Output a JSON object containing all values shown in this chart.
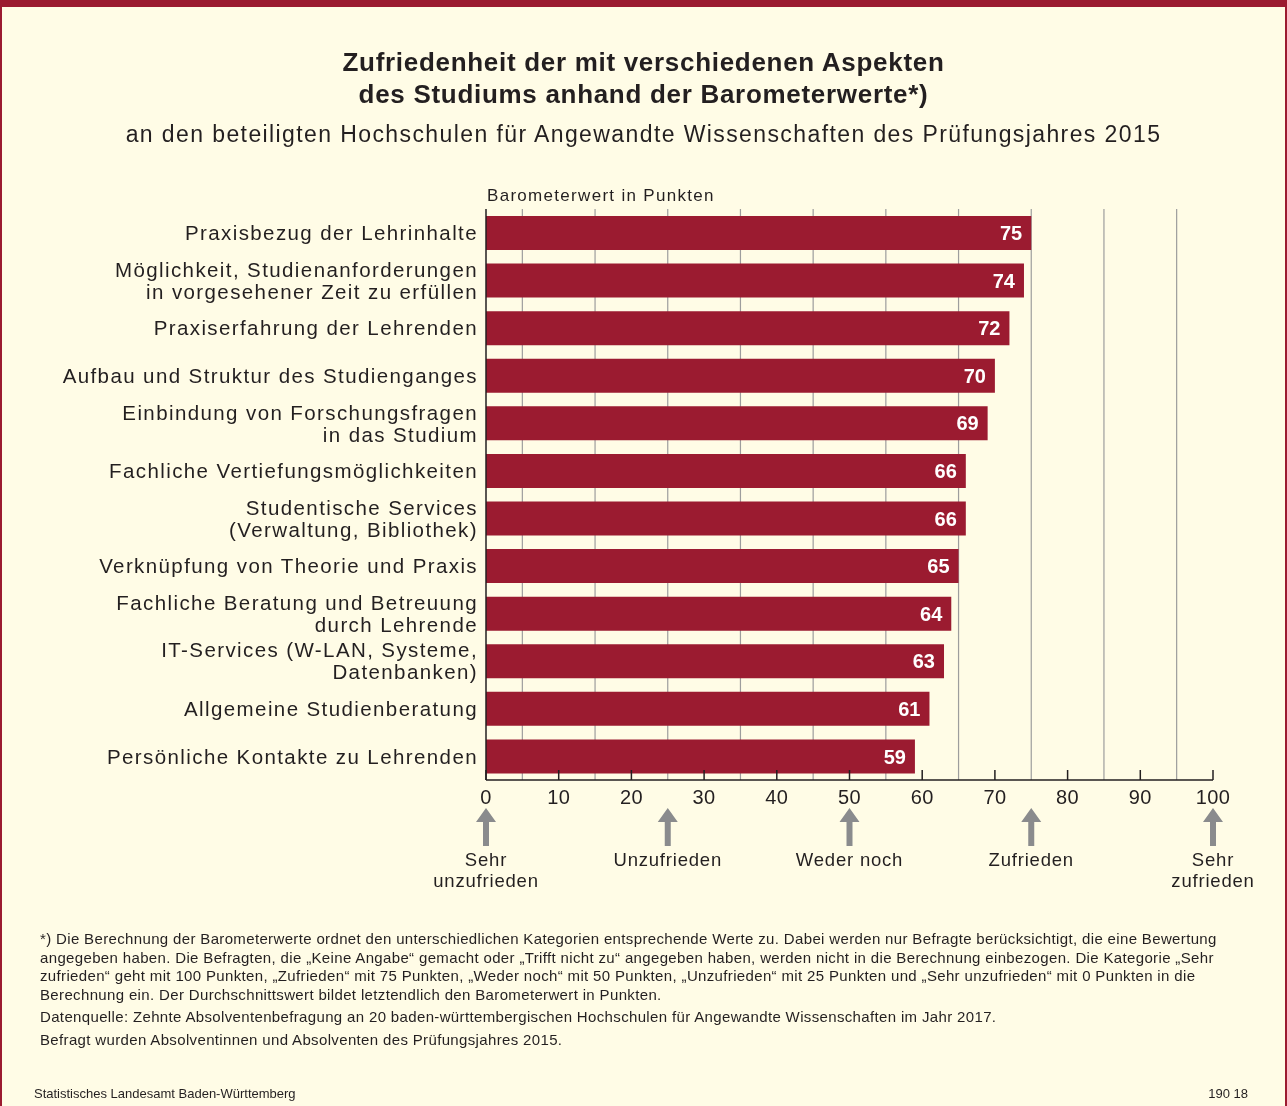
{
  "chart_data": {
    "type": "bar",
    "orientation": "horizontal",
    "title": "Zufriedenheit der mit verschiedenen Aspekten\ndes Studiums anhand der Barometerwerte*)",
    "subtitle": "an den beteiligten Hochschulen für Angewandte Wissenschaften des Prüfungsjahres 2015",
    "xlabel": "Barometerwert in Punkten",
    "categories": [
      "Praxisbezug der Lehrinhalte",
      "Möglichkeit, Studienanforderungen\nin vorgesehener Zeit zu erfüllen",
      "Praxiserfahrung der Lehrenden",
      "Aufbau und Struktur des Studienganges",
      "Einbindung von Forschungsfragen\nin das Studium",
      "Fachliche Vertiefungsmöglichkeiten",
      "Studentische Services\n(Verwaltung, Bibliothek)",
      "Verknüpfung von Theorie und Praxis",
      "Fachliche Beratung und Betreuung\ndurch Lehrende",
      "IT-Services (W-LAN, Systeme,\nDatenbanken)",
      "Allgemeine Studienberatung",
      "Persönliche Kontakte zu Lehrenden"
    ],
    "values": [
      75,
      74,
      72,
      70,
      69,
      66,
      66,
      65,
      64,
      63,
      61,
      59
    ],
    "color": "#9b1b30",
    "data_labels": true,
    "xlim": [
      0,
      100
    ],
    "xticks": [
      0,
      {
        "value": 5,
        "label": null
      },
      10,
      {
        "value": 15,
        "label": null
      },
      20,
      {
        "value": 25,
        "label": null
      },
      30,
      {
        "value": 35,
        "label": null
      },
      40,
      {
        "value": 45,
        "label": null
      },
      50,
      {
        "value": 55,
        "label": null
      },
      60,
      {
        "value": 65,
        "label": null
      },
      70,
      {
        "value": 75,
        "label": null
      },
      80,
      {
        "value": 85,
        "label": null
      },
      90,
      {
        "value": 95,
        "label": null
      },
      100
    ],
    "grid": "x",
    "annotations": [
      "Sehr\nunzufrieden",
      "Unzufrieden",
      "Weder noch",
      "Zufrieden",
      "Sehr\nzufrieden",
      "*) Die Berechnung der Barometerwerte ordnet den unterschiedlichen Kategorien entsprechende Werte zu. Dabei werden nur Befragte berücksichtigt, die eine Bewertung angegeben haben. Die Befragten, die „Keine Angabe“ gemacht oder „Trifft nicht zu“ angegeben haben, werden nicht in die Berechnung einbezogen. Die Kategorie „Sehr zufrieden“ geht mit 100 Punkten, „Zufrieden“ mit 75 Punkten, „Weder noch“ mit 50 Punkten, „Unzufrieden“ mit 25 Punkten und „Sehr unzufrieden“ mit 0 Punkten in die Berechnung ein. Der Durchschnittswert bildet letztendlich den Barometerwert in Punkten.",
      "Datenquelle: Zehnte Absolventenbefragung an 20 baden-württembergischen Hochschulen für Angewandte Wissenschaften im Jahr 2017.",
      "Befragt wurden Absolventinnen und Absolventen des Prüfungsjahres 2015.",
      "Statistisches Landesamt Baden-Württemberg",
      "190 18"
    ]
  }
}
